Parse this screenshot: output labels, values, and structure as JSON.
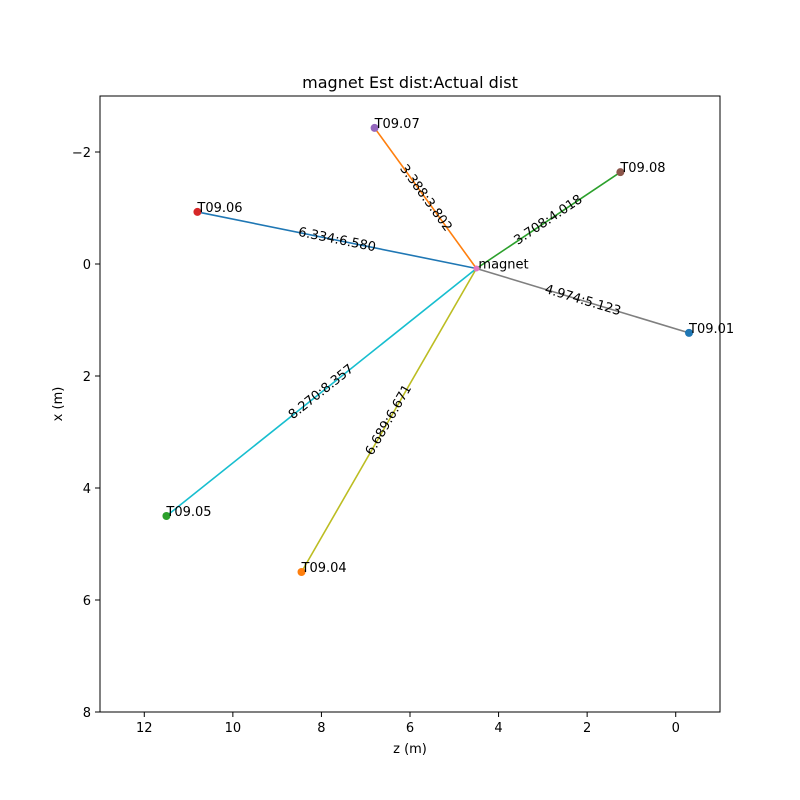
{
  "chart_data": {
    "type": "scatter",
    "title": "magnet  Est dist:Actual dist",
    "xlabel": "z (m)",
    "ylabel": "x (m)",
    "xlim": [
      13,
      -1
    ],
    "ylim": [
      8,
      -3
    ],
    "xticks": [
      12,
      10,
      8,
      6,
      4,
      2,
      0
    ],
    "yticks": [
      -2,
      0,
      2,
      4,
      6,
      8
    ],
    "center": {
      "name": "magnet",
      "z": 4.5,
      "x": 0.08
    },
    "targets": [
      {
        "name": "T09.01",
        "z": -0.3,
        "x": 1.23,
        "distance_label": "4.974:5.123",
        "color": "#7f7f7f",
        "marker_color": "#1f77b4"
      },
      {
        "name": "T09.04",
        "z": 8.45,
        "x": 5.5,
        "distance_label": "6.689:6.671",
        "color": "#bcbd22",
        "marker_color": "#ff7f0e"
      },
      {
        "name": "T09.05",
        "z": 11.5,
        "x": 4.5,
        "distance_label": "8.270:8.357",
        "color": "#17becf",
        "marker_color": "#2ca02c"
      },
      {
        "name": "T09.06",
        "z": 10.8,
        "x": -0.93,
        "distance_label": "6.334:6.580",
        "color": "#1f77b4",
        "marker_color": "#d62728"
      },
      {
        "name": "T09.07",
        "z": 6.8,
        "x": -2.43,
        "distance_label": "3.388:3.802",
        "color": "#ff7f0e",
        "marker_color": "#9467bd"
      },
      {
        "name": "T09.08",
        "z": 1.25,
        "x": -1.64,
        "distance_label": "3.708:4.018",
        "color": "#2ca02c",
        "marker_color": "#8c564b"
      }
    ],
    "grid": false,
    "legend": "none"
  }
}
